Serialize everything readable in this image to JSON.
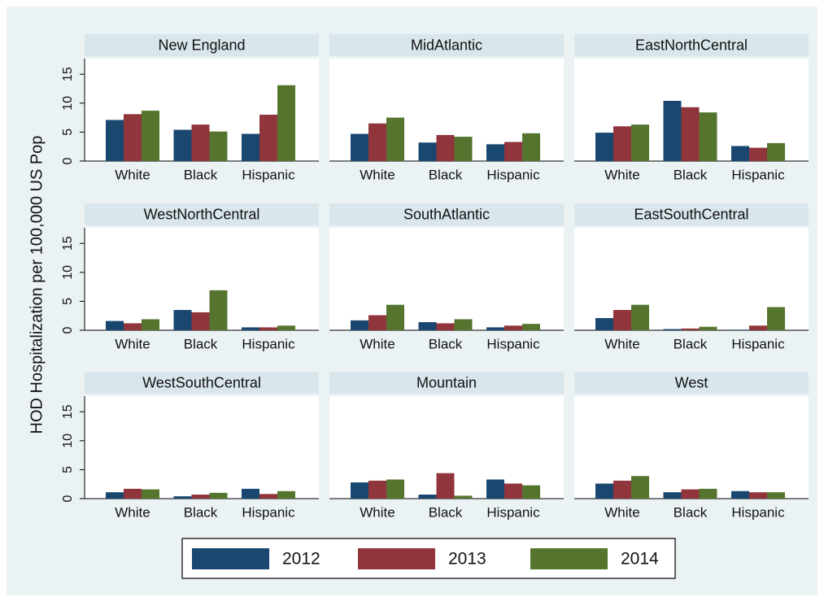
{
  "y_axis_label": "HOD Hospitalization per 100,000 US Pop",
  "legend": [
    {
      "name": "2012",
      "color": "#1a476f"
    },
    {
      "name": "2013",
      "color": "#90353b"
    },
    {
      "name": "2014",
      "color": "#55752f"
    }
  ],
  "chart_data": [
    {
      "type": "bar",
      "title": "New England",
      "categories": [
        "White",
        "Black",
        "Hispanic"
      ],
      "series": [
        {
          "values": [
            7.1,
            5.4,
            4.7
          ]
        },
        {
          "values": [
            8.1,
            6.3,
            8.0
          ]
        },
        {
          "values": [
            8.7,
            5.1,
            13.1
          ]
        }
      ],
      "ylim": [
        0,
        17.7
      ],
      "yticks": [
        0,
        5,
        10,
        15
      ]
    },
    {
      "type": "bar",
      "title": "MidAtlantic",
      "categories": [
        "White",
        "Black",
        "Hispanic"
      ],
      "series": [
        {
          "values": [
            4.7,
            3.2,
            2.9
          ]
        },
        {
          "values": [
            6.5,
            4.5,
            3.3
          ]
        },
        {
          "values": [
            7.5,
            4.2,
            4.8
          ]
        }
      ],
      "ylim": [
        0,
        17.7
      ]
    },
    {
      "type": "bar",
      "title": "EastNorthCentral",
      "categories": [
        "White",
        "Black",
        "Hispanic"
      ],
      "series": [
        {
          "values": [
            4.9,
            10.4,
            2.6
          ]
        },
        {
          "values": [
            6.0,
            9.3,
            2.3
          ]
        },
        {
          "values": [
            6.3,
            8.4,
            3.1
          ]
        }
      ],
      "ylim": [
        0,
        17.7
      ]
    },
    {
      "type": "bar",
      "title": "WestNorthCentral",
      "categories": [
        "White",
        "Black",
        "Hispanic"
      ],
      "series": [
        {
          "values": [
            1.6,
            3.5,
            0.5
          ]
        },
        {
          "values": [
            1.2,
            3.1,
            0.5
          ]
        },
        {
          "values": [
            1.9,
            6.9,
            0.8
          ]
        }
      ],
      "ylim": [
        0,
        17.7
      ],
      "yticks": [
        0,
        5,
        10,
        15
      ]
    },
    {
      "type": "bar",
      "title": "SouthAtlantic",
      "categories": [
        "White",
        "Black",
        "Hispanic"
      ],
      "series": [
        {
          "values": [
            1.7,
            1.4,
            0.5
          ]
        },
        {
          "values": [
            2.6,
            1.2,
            0.8
          ]
        },
        {
          "values": [
            4.4,
            1.9,
            1.1
          ]
        }
      ],
      "ylim": [
        0,
        17.7
      ]
    },
    {
      "type": "bar",
      "title": "EastSouthCentral",
      "categories": [
        "White",
        "Black",
        "Hispanic"
      ],
      "series": [
        {
          "values": [
            2.1,
            0.2,
            0.1
          ]
        },
        {
          "values": [
            3.5,
            0.3,
            0.8
          ]
        },
        {
          "values": [
            4.4,
            0.6,
            4.0
          ]
        }
      ],
      "ylim": [
        0,
        17.7
      ]
    },
    {
      "type": "bar",
      "title": "WestSouthCentral",
      "categories": [
        "White",
        "Black",
        "Hispanic"
      ],
      "series": [
        {
          "values": [
            1.1,
            0.4,
            1.7
          ]
        },
        {
          "values": [
            1.7,
            0.7,
            0.8
          ]
        },
        {
          "values": [
            1.6,
            1.0,
            1.3
          ]
        }
      ],
      "ylim": [
        0,
        17.7
      ],
      "yticks": [
        0,
        5,
        10,
        15
      ]
    },
    {
      "type": "bar",
      "title": "Mountain",
      "categories": [
        "White",
        "Black",
        "Hispanic"
      ],
      "series": [
        {
          "values": [
            2.8,
            0.7,
            3.3
          ]
        },
        {
          "values": [
            3.1,
            4.4,
            2.6
          ]
        },
        {
          "values": [
            3.3,
            0.5,
            2.3
          ]
        }
      ],
      "ylim": [
        0,
        17.7
      ]
    },
    {
      "type": "bar",
      "title": "West",
      "categories": [
        "White",
        "Black",
        "Hispanic"
      ],
      "series": [
        {
          "values": [
            2.6,
            1.1,
            1.3
          ]
        },
        {
          "values": [
            3.1,
            1.6,
            1.1
          ]
        },
        {
          "values": [
            3.9,
            1.7,
            1.1
          ]
        }
      ],
      "ylim": [
        0,
        17.7
      ]
    }
  ]
}
